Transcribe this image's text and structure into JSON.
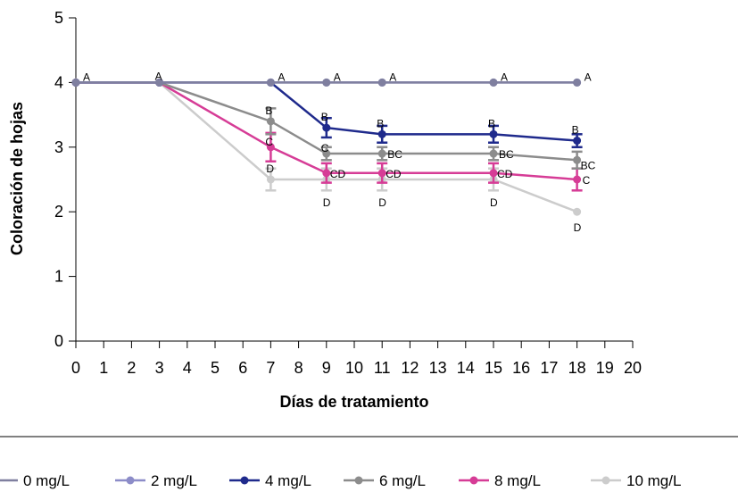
{
  "chart_data": {
    "type": "line",
    "xlabel": "Días de tratamiento",
    "ylabel": "Coloración de hojas",
    "xlim": [
      0,
      20
    ],
    "ylim": [
      0,
      5
    ],
    "xticks": [
      0,
      1,
      2,
      3,
      4,
      5,
      6,
      7,
      8,
      9,
      10,
      11,
      12,
      13,
      14,
      15,
      16,
      17,
      18,
      19,
      20
    ],
    "yticks": [
      0,
      1,
      2,
      3,
      4,
      5
    ],
    "x": [
      0,
      3,
      7,
      9,
      11,
      15,
      18
    ],
    "grid": false,
    "legend_position": "bottom",
    "series": [
      {
        "name": "0 mg/L",
        "color": "#7f7f9f",
        "values": [
          4,
          4,
          4,
          4,
          4,
          4,
          4
        ],
        "errors": [
          0,
          0,
          0,
          0,
          0,
          0,
          0
        ]
      },
      {
        "name": "2 mg/L",
        "color": "#8c8cc8",
        "values": [
          4,
          4,
          4,
          4,
          4,
          4,
          4
        ],
        "errors": [
          0,
          0,
          0,
          0,
          0,
          0,
          0
        ]
      },
      {
        "name": "4 mg/L",
        "color": "#1f2a8c",
        "values": [
          4,
          4,
          4,
          3.3,
          3.2,
          3.2,
          3.1
        ],
        "errors": [
          0,
          0,
          0,
          0.15,
          0.13,
          0.13,
          0.1
        ]
      },
      {
        "name": "6 mg/L",
        "color": "#8c8c8c",
        "values": [
          4,
          4,
          3.4,
          2.9,
          2.9,
          2.9,
          2.8
        ],
        "errors": [
          0,
          0,
          0.2,
          0.1,
          0.1,
          0.1,
          0.13
        ]
      },
      {
        "name": "8 mg/L",
        "color": "#d63c96",
        "values": [
          4,
          4,
          3.0,
          2.6,
          2.6,
          2.6,
          2.5
        ],
        "errors": [
          0,
          0,
          0.22,
          0.15,
          0.15,
          0.15,
          0.17
        ]
      },
      {
        "name": "10 mg/L",
        "color": "#cccccc",
        "values": [
          4,
          4,
          2.5,
          2.5,
          2.5,
          2.5,
          2.0
        ],
        "errors": [
          0,
          0,
          0.17,
          0.17,
          0.17,
          0.17,
          0
        ]
      }
    ],
    "annotations": [
      {
        "text": "A",
        "x": 0,
        "y": 4
      },
      {
        "text": "A",
        "x": 3,
        "y": 4
      },
      {
        "text": "A",
        "x": 7,
        "y": 4
      },
      {
        "text": "A",
        "x": 9,
        "y": 4
      },
      {
        "text": "A",
        "x": 11,
        "y": 4
      },
      {
        "text": "A",
        "x": 15,
        "y": 4
      },
      {
        "text": "A",
        "x": 18,
        "y": 4
      },
      {
        "text": "B",
        "x": 7,
        "y": 3.4
      },
      {
        "text": "C",
        "x": 7,
        "y": 3.0
      },
      {
        "text": "D",
        "x": 7,
        "y": 2.5
      },
      {
        "text": "B",
        "x": 9,
        "y": 3.3
      },
      {
        "text": "C",
        "x": 9,
        "y": 2.9
      },
      {
        "text": "CD",
        "x": 9,
        "y": 2.6
      },
      {
        "text": "D",
        "x": 9,
        "y": 2.5
      },
      {
        "text": "B",
        "x": 11,
        "y": 3.2
      },
      {
        "text": "BC",
        "x": 11,
        "y": 2.9
      },
      {
        "text": "CD",
        "x": 11,
        "y": 2.6
      },
      {
        "text": "D",
        "x": 11,
        "y": 2.5
      },
      {
        "text": "B",
        "x": 15,
        "y": 3.2
      },
      {
        "text": "BC",
        "x": 15,
        "y": 2.9
      },
      {
        "text": "CD",
        "x": 15,
        "y": 2.6
      },
      {
        "text": "D",
        "x": 15,
        "y": 2.5
      },
      {
        "text": "B",
        "x": 18,
        "y": 3.1
      },
      {
        "text": "BC",
        "x": 18,
        "y": 2.8
      },
      {
        "text": "C",
        "x": 18,
        "y": 2.5
      },
      {
        "text": "D",
        "x": 18,
        "y": 2.0
      }
    ]
  }
}
